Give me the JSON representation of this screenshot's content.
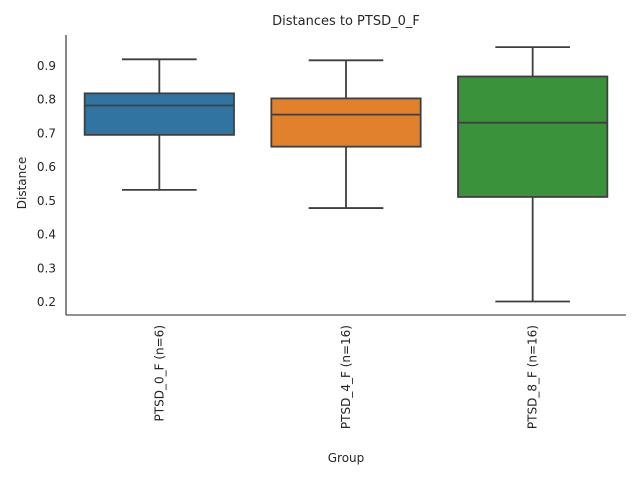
{
  "chart_data": {
    "type": "box",
    "title": "Distances to PTSD_0_F",
    "xlabel": "Group",
    "ylabel": "Distance",
    "ylim": [
      0.16,
      0.99
    ],
    "yticks": [
      0.2,
      0.3,
      0.4,
      0.5,
      0.6,
      0.7,
      0.8,
      0.9
    ],
    "ytick_labels": [
      "0.2",
      "0.3",
      "0.4",
      "0.5",
      "0.6",
      "0.7",
      "0.8",
      "0.9"
    ],
    "grid": false,
    "legend": "none",
    "categories": [
      "PTSD_0_F (n=6)",
      "PTSD_4_F (n=16)",
      "PTSD_8_F (n=16)"
    ],
    "series": [
      {
        "name": "PTSD_0_F (n=6)",
        "color": "#3274A1",
        "whisker_low": 0.531,
        "q1": 0.694,
        "median": 0.781,
        "q3": 0.817,
        "whisker_high": 0.918
      },
      {
        "name": "PTSD_4_F (n=16)",
        "color": "#E1812C",
        "whisker_low": 0.477,
        "q1": 0.659,
        "median": 0.754,
        "q3": 0.802,
        "whisker_high": 0.915
      },
      {
        "name": "PTSD_8_F (n=16)",
        "color": "#3A923A",
        "whisker_low": 0.2,
        "q1": 0.51,
        "median": 0.73,
        "q3": 0.867,
        "whisker_high": 0.954
      }
    ],
    "line_color": "#3F3F3F"
  }
}
